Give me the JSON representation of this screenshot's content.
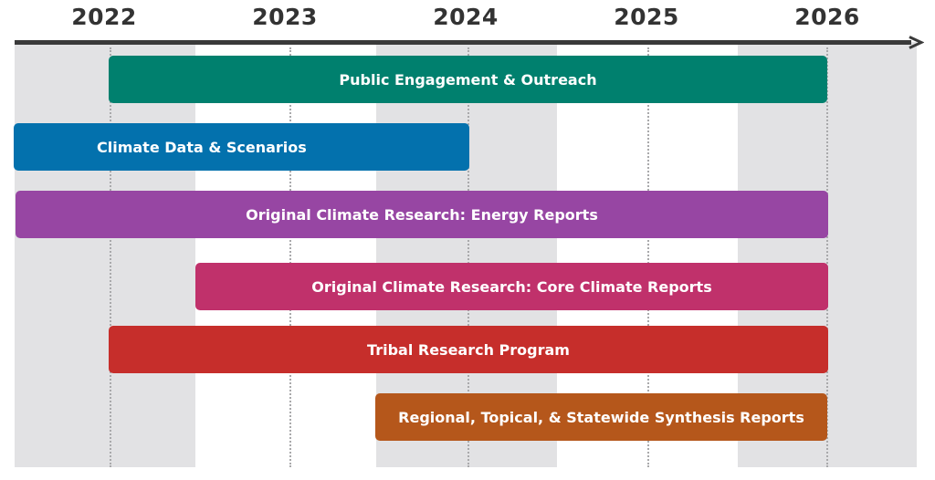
{
  "timeline": {
    "years": [
      "2022",
      "2023",
      "2024",
      "2025",
      "2026"
    ],
    "bars": [
      {
        "label": "Public Engagement & Outreach",
        "start": "2022",
        "end": "2026",
        "color": "#00806e"
      },
      {
        "label": "Climate Data & Scenarios",
        "start": "2021.5",
        "end": "2024",
        "color": "#0371ad"
      },
      {
        "label": "Original Climate Research: Energy Reports",
        "start": "2021.5",
        "end": "2026",
        "color": "#9746a3"
      },
      {
        "label": "Original Climate Research: Core Climate Reports",
        "start": "2022.5",
        "end": "2026",
        "color": "#c0316b"
      },
      {
        "label": "Tribal Research Program",
        "start": "2022",
        "end": "2026",
        "color": "#c62e2b"
      },
      {
        "label": "Regional, Topical, & Statewide Synthesis Reports",
        "start": "2023.5",
        "end": "2026",
        "color": "#b5571b"
      }
    ]
  }
}
